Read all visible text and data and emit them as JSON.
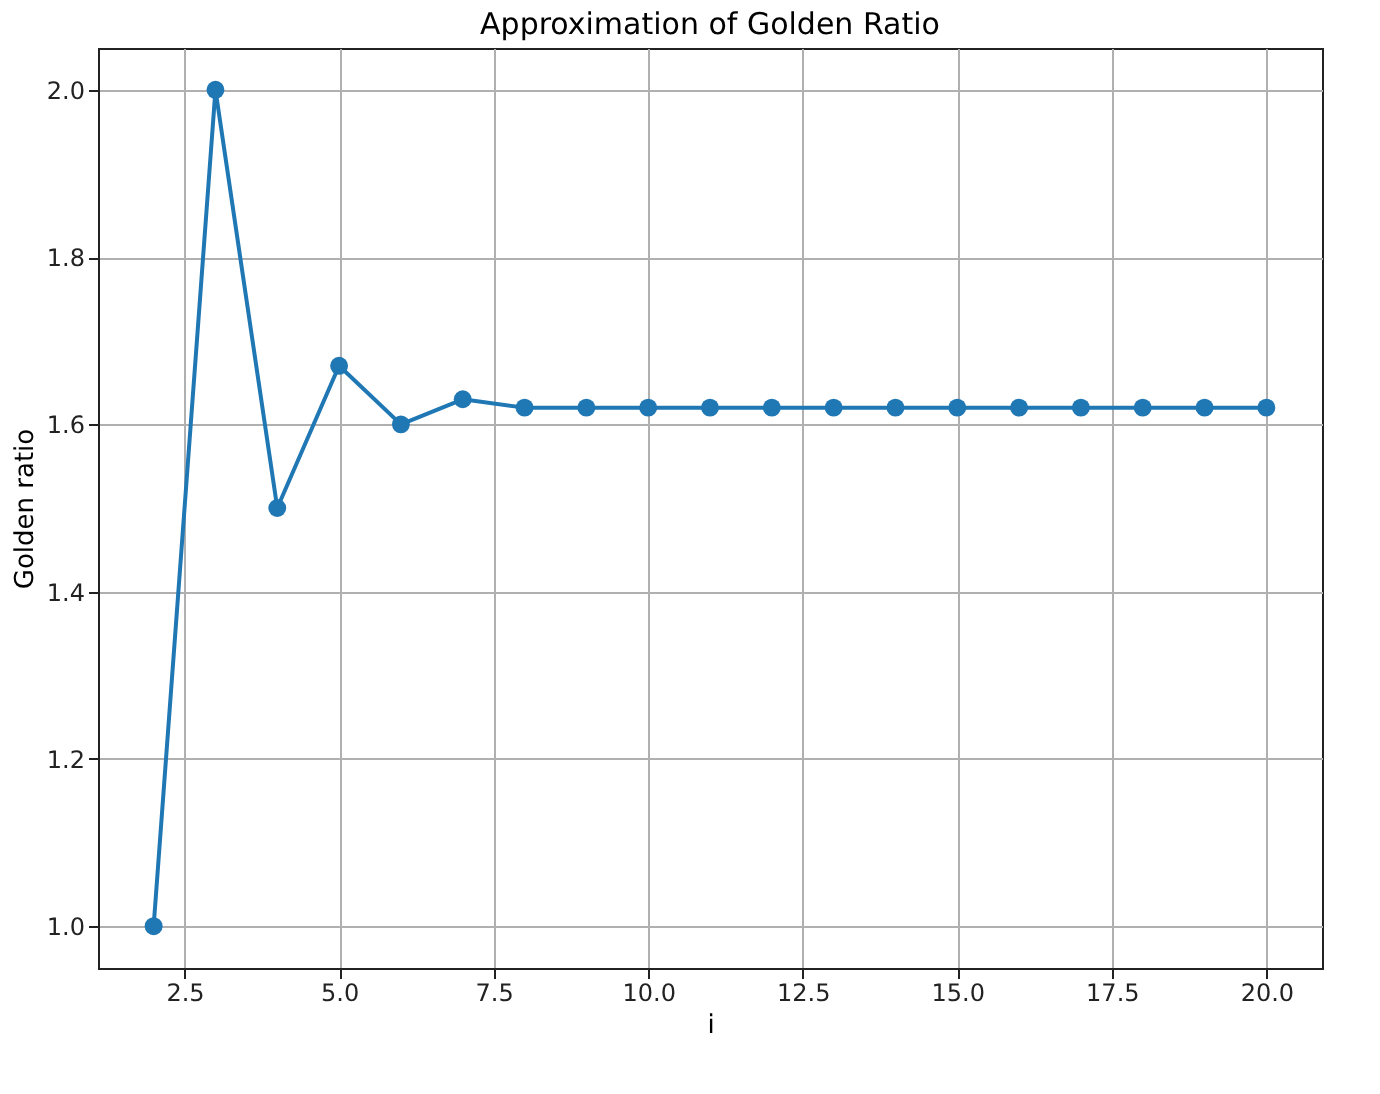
{
  "chart_data": {
    "type": "line",
    "title": "Approximation of Golden Ratio",
    "xlabel": "i",
    "ylabel": "Golden ratio",
    "x": [
      2,
      3,
      4,
      5,
      6,
      7,
      8,
      9,
      10,
      11,
      12,
      13,
      14,
      15,
      16,
      17,
      18,
      19,
      20
    ],
    "series": [
      {
        "color": "#1f77b4",
        "values": [
          1.0,
          2.0,
          1.5,
          1.67,
          1.6,
          1.63,
          1.62,
          1.62,
          1.62,
          1.62,
          1.62,
          1.62,
          1.62,
          1.62,
          1.62,
          1.62,
          1.62,
          1.62,
          1.62
        ]
      }
    ],
    "xlim": [
      1.1,
      20.9
    ],
    "ylim": [
      0.95,
      2.05
    ],
    "xticks": [
      {
        "value": 2.5,
        "label": "2.5"
      },
      {
        "value": 5,
        "label": "5.0"
      },
      {
        "value": 7.5,
        "label": "7.5"
      },
      {
        "value": 10,
        "label": "10.0"
      },
      {
        "value": 12.5,
        "label": "12.5"
      },
      {
        "value": 15,
        "label": "15.0"
      },
      {
        "value": 17.5,
        "label": "17.5"
      },
      {
        "value": 20,
        "label": "20.0"
      }
    ],
    "yticks": [
      {
        "value": 1,
        "label": "1.0"
      },
      {
        "value": 1.2,
        "label": "1.2"
      },
      {
        "value": 1.4,
        "label": "1.4"
      },
      {
        "value": 1.6,
        "label": "1.6"
      },
      {
        "value": 1.8,
        "label": "1.8"
      },
      {
        "value": 2,
        "label": "2.0"
      }
    ],
    "grid": true,
    "marker": "circle",
    "line_style": "solid"
  }
}
